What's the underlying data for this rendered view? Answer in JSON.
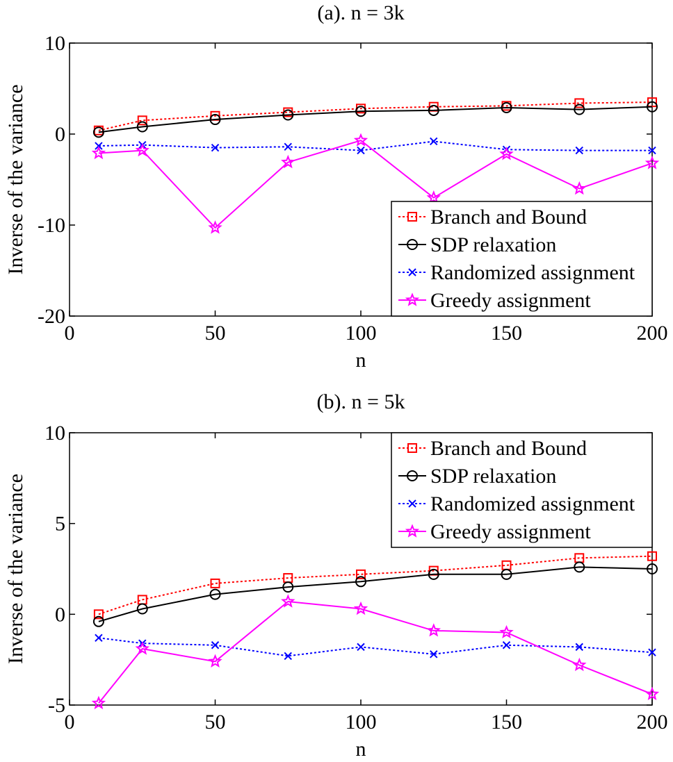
{
  "chart_data": [
    {
      "type": "line",
      "title": "(a). n = 3k",
      "x_label": "n",
      "y_label": "Inverse of the variance",
      "x": [
        10,
        25,
        50,
        75,
        100,
        125,
        150,
        175,
        200
      ],
      "xlim": [
        0,
        200
      ],
      "xticks": [
        0,
        50,
        100,
        150,
        200
      ],
      "ylim": [
        -20,
        10
      ],
      "yticks": [
        -20,
        -10,
        0,
        10
      ],
      "legend": "lower right",
      "series": [
        {
          "name": "Branch and Bound",
          "color": "#ff0000",
          "marker": "square",
          "linestyle": "dotted",
          "values": [
            0.4,
            1.5,
            2.0,
            2.4,
            2.8,
            3.0,
            3.1,
            3.4,
            3.5
          ]
        },
        {
          "name": "SDP relaxation",
          "color": "#000000",
          "marker": "circle",
          "linestyle": "solid",
          "values": [
            0.2,
            0.8,
            1.6,
            2.1,
            2.5,
            2.6,
            2.9,
            2.7,
            3.0
          ]
        },
        {
          "name": "Randomized assignment",
          "color": "#0000ff",
          "marker": "x",
          "linestyle": "dotted",
          "values": [
            -1.3,
            -1.2,
            -1.5,
            -1.4,
            -1.8,
            -0.8,
            -1.7,
            -1.8,
            -1.8
          ]
        },
        {
          "name": "Greedy assignment",
          "color": "#ff00ff",
          "marker": "star",
          "linestyle": "solid",
          "values": [
            -2.1,
            -1.8,
            -10.3,
            -3.1,
            -0.7,
            -7.0,
            -2.2,
            -6.0,
            -3.2
          ]
        }
      ]
    },
    {
      "type": "line",
      "title": "(b). n = 5k",
      "x_label": "n",
      "y_label": "Inverse of the variance",
      "x": [
        10,
        25,
        50,
        75,
        100,
        125,
        150,
        175,
        200
      ],
      "xlim": [
        0,
        200
      ],
      "xticks": [
        0,
        50,
        100,
        150,
        200
      ],
      "ylim": [
        -5,
        10
      ],
      "yticks": [
        -5,
        0,
        5,
        10
      ],
      "legend": "upper right",
      "series": [
        {
          "name": "Branch and Bound",
          "color": "#ff0000",
          "marker": "square",
          "linestyle": "dotted",
          "values": [
            0.0,
            0.8,
            1.7,
            2.0,
            2.2,
            2.4,
            2.7,
            3.1,
            3.2
          ]
        },
        {
          "name": "SDP relaxation",
          "color": "#000000",
          "marker": "circle",
          "linestyle": "solid",
          "values": [
            -0.4,
            0.3,
            1.1,
            1.5,
            1.8,
            2.2,
            2.2,
            2.6,
            2.5
          ]
        },
        {
          "name": "Randomized assignment",
          "color": "#0000ff",
          "marker": "x",
          "linestyle": "dotted",
          "values": [
            -1.3,
            -1.6,
            -1.7,
            -2.3,
            -1.8,
            -2.2,
            -1.7,
            -1.8,
            -2.1
          ]
        },
        {
          "name": "Greedy assignment",
          "color": "#ff00ff",
          "marker": "star",
          "linestyle": "solid",
          "values": [
            -4.9,
            -1.9,
            -2.6,
            0.7,
            0.3,
            -0.9,
            -1.0,
            -2.8,
            -4.4
          ]
        }
      ]
    }
  ]
}
